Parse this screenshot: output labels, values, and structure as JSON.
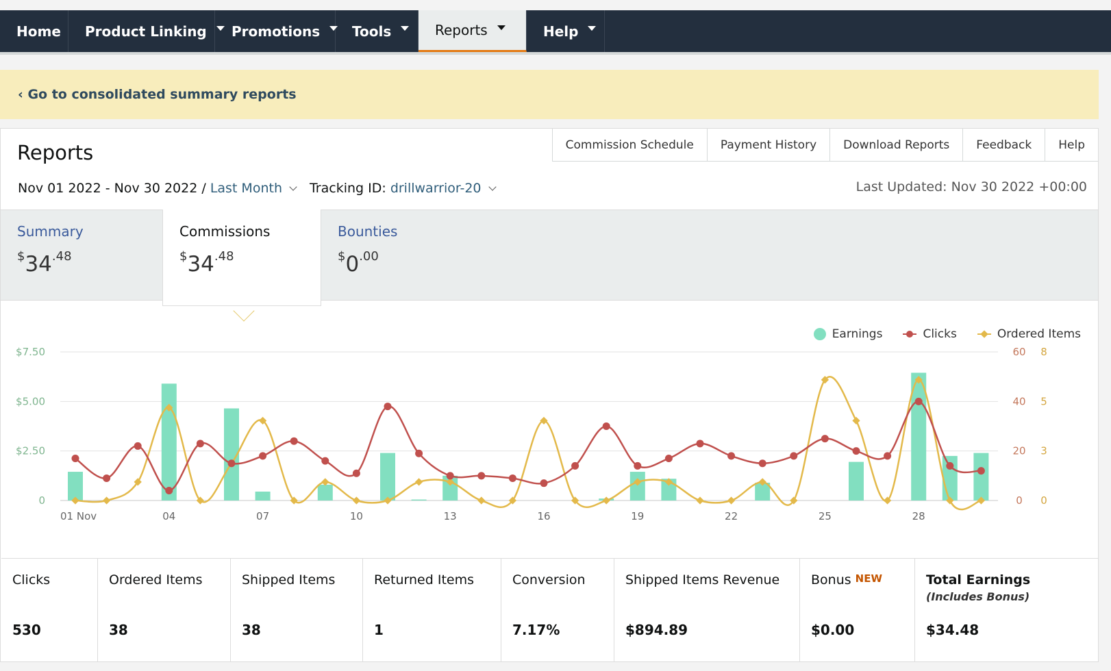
{
  "nav": {
    "items": [
      {
        "label": "Home",
        "caret": false
      },
      {
        "label": "Product Linking",
        "caret": true
      },
      {
        "label": "Promotions",
        "caret": true
      },
      {
        "label": "Tools",
        "caret": true
      },
      {
        "label": "Reports",
        "caret": true,
        "active": true
      },
      {
        "label": "Help",
        "caret": true
      }
    ]
  },
  "banner": {
    "link": "‹ Go to consolidated summary reports"
  },
  "page": {
    "title": "Reports"
  },
  "subnav": [
    "Commission Schedule",
    "Payment History",
    "Download Reports",
    "Feedback",
    "Help"
  ],
  "filters": {
    "date_range": "Nov 01 2022 - Nov 30 2022 /",
    "period": "Last Month",
    "tracking_label": "Tracking ID:",
    "tracking_id": "drillwarrior-20",
    "last_updated": "Last Updated: Nov 30 2022 +00:00"
  },
  "tabs": [
    {
      "label": "Summary",
      "currency": "$",
      "whole": "34",
      "cents": ".48"
    },
    {
      "label": "Commissions",
      "currency": "$",
      "whole": "34",
      "cents": ".48",
      "active": true
    },
    {
      "label": "Bounties",
      "currency": "$",
      "whole": "0",
      "cents": ".00"
    }
  ],
  "colors": {
    "earnings": "#82dfc0",
    "clicks": "#c0504d",
    "ordered": "#e3b94a",
    "nav_bg": "#232f3e",
    "banner_bg": "#f8edbc"
  },
  "chart_data": {
    "type": "bar+line",
    "legend": [
      "Earnings",
      "Clicks",
      "Ordered Items"
    ],
    "legend_position": "top-right",
    "grid": true,
    "x": [
      1,
      2,
      3,
      4,
      5,
      6,
      7,
      8,
      9,
      10,
      11,
      12,
      13,
      14,
      15,
      16,
      17,
      18,
      19,
      20,
      21,
      22,
      23,
      24,
      25,
      26,
      27,
      28,
      29,
      30
    ],
    "x_tick_labels": [
      {
        "day": 1,
        "label": "01 Nov"
      },
      {
        "day": 4,
        "label": "04"
      },
      {
        "day": 7,
        "label": "07"
      },
      {
        "day": 10,
        "label": "10"
      },
      {
        "day": 13,
        "label": "13"
      },
      {
        "day": 16,
        "label": "16"
      },
      {
        "day": 19,
        "label": "19"
      },
      {
        "day": 22,
        "label": "22"
      },
      {
        "day": 25,
        "label": "25"
      },
      {
        "day": 28,
        "label": "28"
      }
    ],
    "y_left": {
      "ticks": [
        "0",
        "$2.50",
        "$5.00",
        "$7.50"
      ],
      "range": [
        0,
        7.5
      ]
    },
    "y_right_clicks": {
      "ticks": [
        "0",
        "20",
        "40",
        "60"
      ],
      "range": [
        0,
        60
      ]
    },
    "y_right_ordered": {
      "ticks": [
        "0",
        "3",
        "5",
        "8"
      ],
      "range": [
        0,
        8
      ]
    },
    "series": [
      {
        "name": "Earnings",
        "kind": "bar",
        "axis": "left",
        "values": [
          1.45,
          0,
          0,
          5.9,
          0,
          4.65,
          0.45,
          0,
          0.8,
          0,
          2.4,
          0.05,
          1.25,
          0,
          0,
          0,
          0,
          0.1,
          1.45,
          1.1,
          0,
          0,
          0.9,
          0,
          0,
          1.95,
          0,
          6.45,
          2.25,
          2.4
        ]
      },
      {
        "name": "Clicks",
        "kind": "line",
        "axis": "right",
        "values": [
          17,
          9,
          22,
          4,
          23,
          15,
          18,
          24,
          16,
          11,
          38,
          19,
          10,
          10,
          9,
          7,
          14,
          30,
          14,
          17,
          23,
          18,
          15,
          18,
          25,
          20,
          18,
          40,
          14,
          12
        ]
      },
      {
        "name": "Ordered Items",
        "kind": "line",
        "axis": "right2",
        "values": [
          0,
          0,
          1,
          5,
          0,
          2,
          4.3,
          0,
          1,
          0,
          0,
          1,
          1,
          0,
          0,
          4.3,
          0,
          0,
          1,
          1,
          0,
          0,
          1,
          0,
          6.5,
          4.3,
          0,
          6.5,
          0,
          0
        ]
      }
    ]
  },
  "stats": [
    {
      "label": "Clicks",
      "value": "530"
    },
    {
      "label": "Ordered Items",
      "value": "38"
    },
    {
      "label": "Shipped Items",
      "value": "38"
    },
    {
      "label": "Returned Items",
      "value": "1"
    },
    {
      "label": "Conversion",
      "value": "7.17%"
    },
    {
      "label": "Shipped Items Revenue",
      "value": "$894.89"
    },
    {
      "label": "Bonus",
      "badge": "NEW",
      "value": "$0.00"
    },
    {
      "label": "Total Earnings",
      "sub": "(Includes Bonus)",
      "value": "$34.48"
    }
  ]
}
